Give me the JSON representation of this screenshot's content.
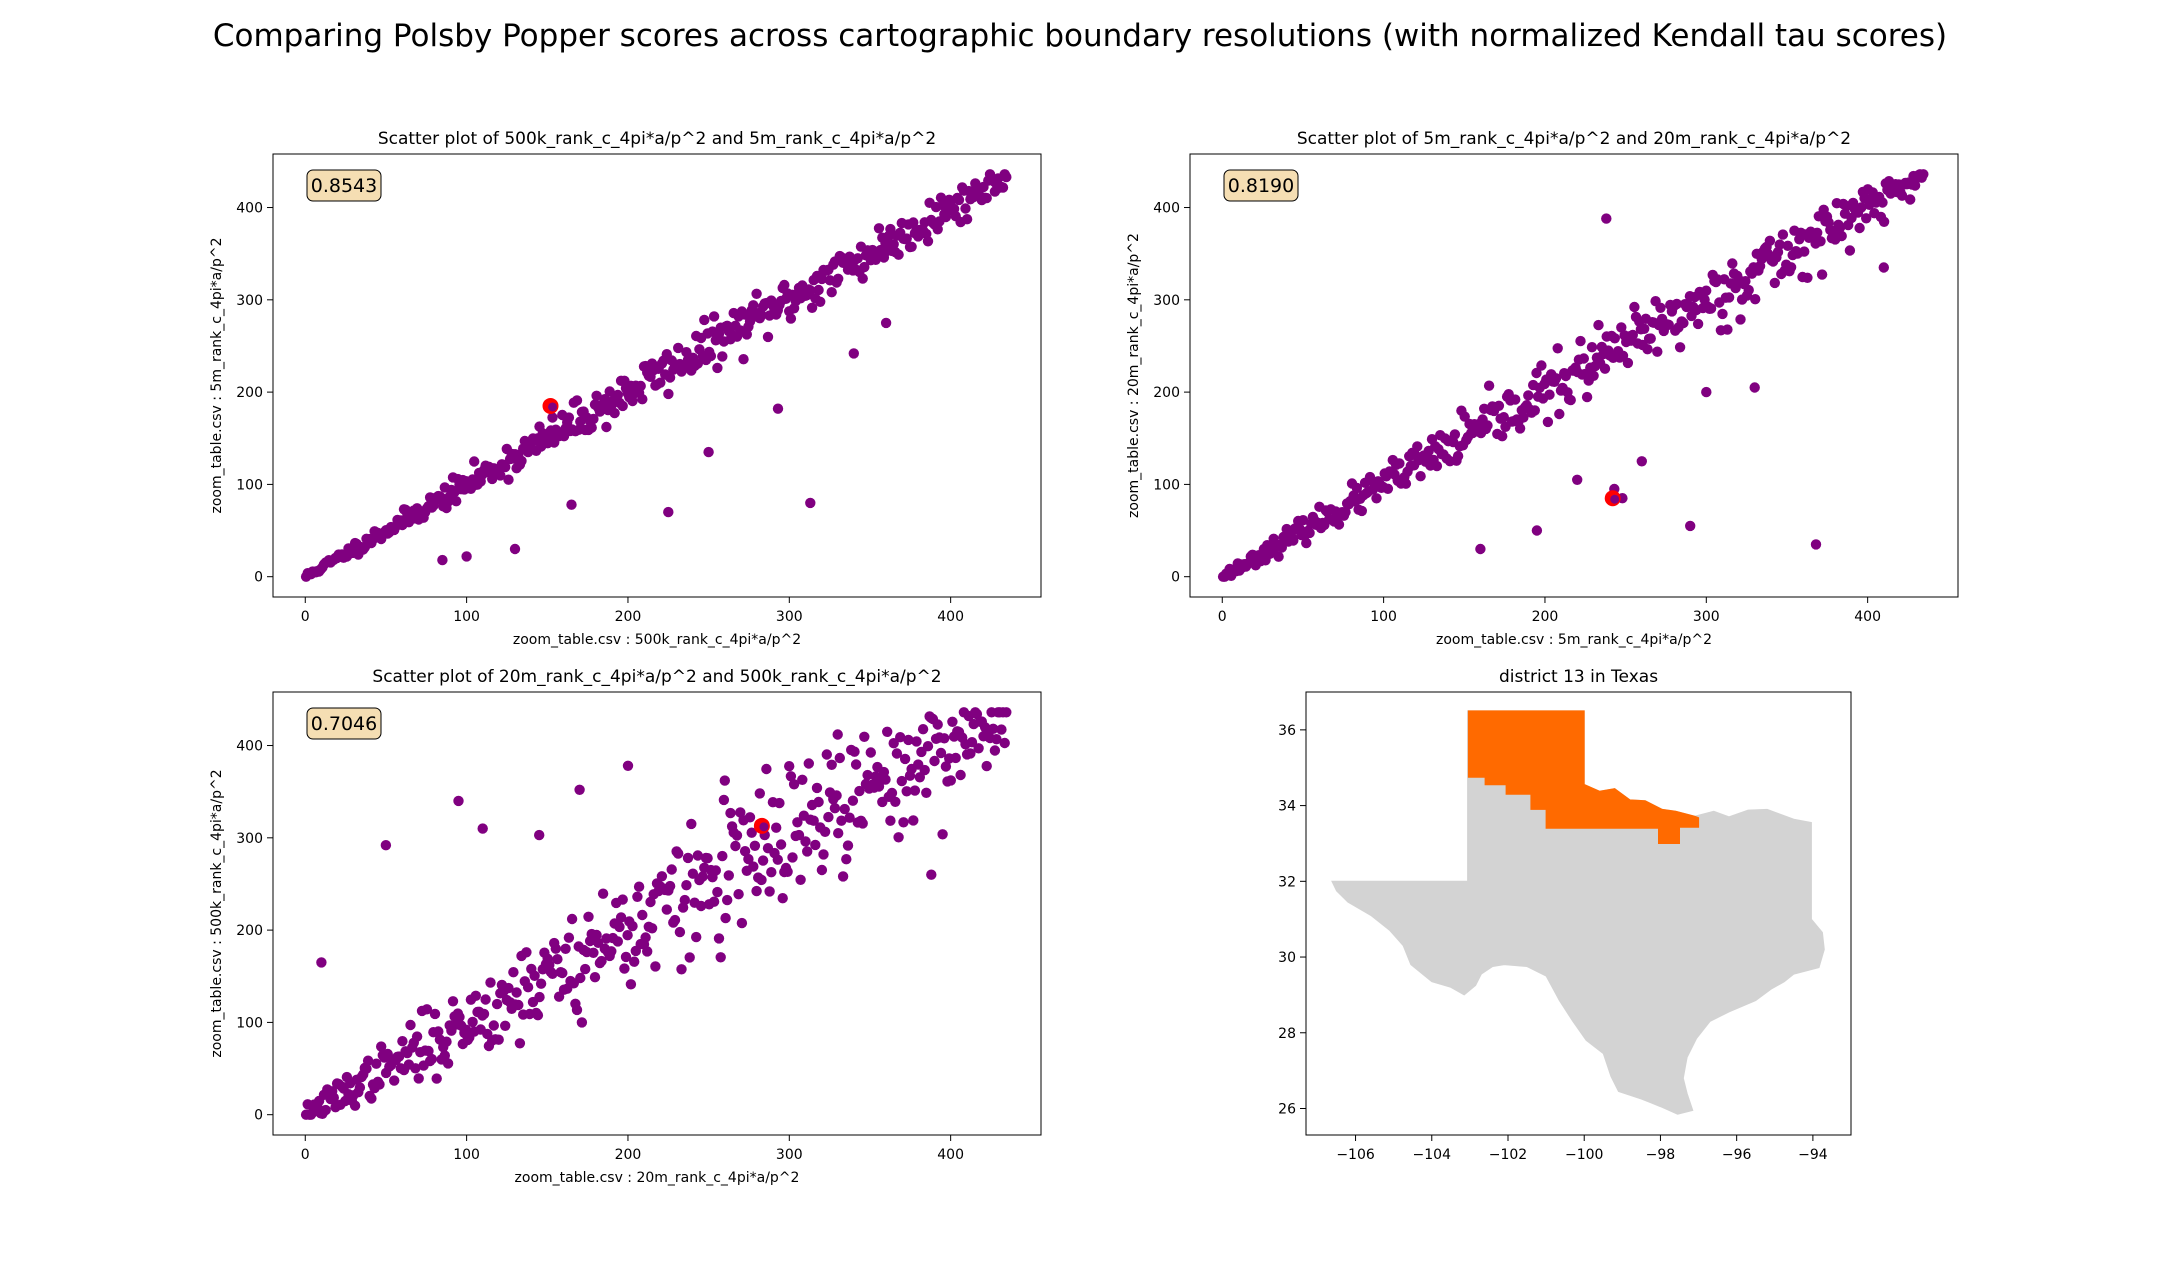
{
  "suptitle": "Comparing Polsby Popper scores across cartographic boundary resolutions (with normalized Kendall tau scores)",
  "colors": {
    "points": "#800080",
    "highlight": "#ff0000",
    "tau_box_fill": "#f5deb3",
    "district_fill": "#ff6a00",
    "state_fill": "#d3d3d3"
  },
  "chart_data": [
    {
      "type": "scatter",
      "title": "Scatter plot of 500k_rank_c_4pi*a/p^2 and 5m_rank_c_4pi*a/p^2",
      "xlabel": "zoom_table.csv : 500k_rank_c_4pi*a/p^2",
      "ylabel": "zoom_table.csv : 5m_rank_c_4pi*a/p^2",
      "xlim": [
        -20,
        456
      ],
      "ylim": [
        -22,
        458
      ],
      "xticks": [
        0,
        100,
        200,
        300,
        400
      ],
      "yticks": [
        0,
        100,
        200,
        300,
        400
      ],
      "tau": "0.8543",
      "highlight": [
        [
          152,
          185
        ]
      ],
      "spread": 0.09,
      "noise_seed": 11,
      "outliers": [
        [
          313,
          80
        ],
        [
          225,
          70
        ],
        [
          293,
          182
        ],
        [
          340,
          242
        ],
        [
          360,
          275
        ],
        [
          250,
          135
        ],
        [
          165,
          78
        ],
        [
          130,
          30
        ],
        [
          85,
          18
        ],
        [
          100,
          22
        ]
      ]
    },
    {
      "type": "scatter",
      "title": "Scatter plot of 5m_rank_c_4pi*a/p^2 and 20m_rank_c_4pi*a/p^2",
      "xlabel": "zoom_table.csv : 5m_rank_c_4pi*a/p^2",
      "ylabel": "zoom_table.csv : 20m_rank_c_4pi*a/p^2",
      "xlim": [
        -20,
        456
      ],
      "ylim": [
        -22,
        458
      ],
      "xticks": [
        0,
        100,
        200,
        300,
        400
      ],
      "yticks": [
        0,
        100,
        200,
        300,
        400
      ],
      "tau": "0.8190",
      "highlight": [
        [
          242,
          85
        ]
      ],
      "spread": 0.12,
      "noise_seed": 23,
      "outliers": [
        [
          238,
          388
        ],
        [
          368,
          35
        ],
        [
          290,
          55
        ],
        [
          160,
          30
        ],
        [
          195,
          50
        ],
        [
          243,
          95
        ],
        [
          248,
          85
        ],
        [
          220,
          105
        ],
        [
          260,
          125
        ],
        [
          300,
          200
        ],
        [
          330,
          205
        ],
        [
          410,
          335
        ]
      ]
    },
    {
      "type": "scatter",
      "title": "Scatter plot of 20m_rank_c_4pi*a/p^2 and 500k_rank_c_4pi*a/p^2",
      "xlabel": "zoom_table.csv : 20m_rank_c_4pi*a/p^2",
      "ylabel": "zoom_table.csv : 500k_rank_c_4pi*a/p^2",
      "xlim": [
        -20,
        456
      ],
      "ylim": [
        -22,
        458
      ],
      "xticks": [
        0,
        100,
        200,
        300,
        400
      ],
      "yticks": [
        0,
        100,
        200,
        300,
        400
      ],
      "tau": "0.7046",
      "highlight": [
        [
          283,
          313
        ]
      ],
      "spread": 0.26,
      "noise_seed": 37,
      "outliers": [
        [
          200,
          378
        ],
        [
          95,
          340
        ],
        [
          50,
          292
        ],
        [
          145,
          303
        ],
        [
          110,
          310
        ],
        [
          170,
          352
        ],
        [
          10,
          165
        ],
        [
          330,
          412
        ],
        [
          388,
          260
        ],
        [
          260,
          362
        ]
      ]
    },
    {
      "type": "map",
      "title": "district 13 in Texas",
      "xlim": [
        -107.3,
        -93.0
      ],
      "ylim": [
        25.3,
        37.0
      ],
      "xticks": [
        -106,
        -104,
        -102,
        -100,
        -98,
        -96,
        -94
      ],
      "yticks": [
        26,
        28,
        30,
        32,
        34,
        36
      ]
    }
  ]
}
